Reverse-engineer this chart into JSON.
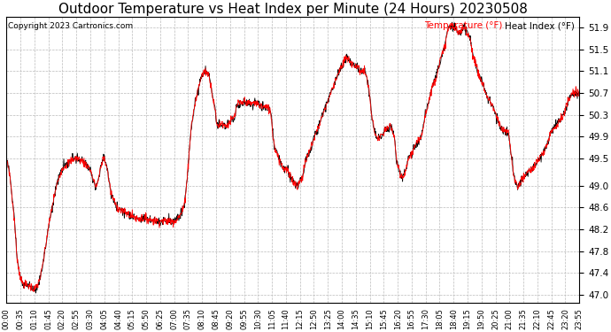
{
  "title": "Outdoor Temperature vs Heat Index per Minute (24 Hours) 20230508",
  "copyright_text": "Copyright 2023 Cartronics.com",
  "legend_heat_index": "Heat Index (°F)",
  "legend_temperature": "Temperature (°F)",
  "ylim": [
    46.85,
    52.1
  ],
  "yticks": [
    47.0,
    47.4,
    47.8,
    48.2,
    48.6,
    49.0,
    49.5,
    49.9,
    50.3,
    50.7,
    51.1,
    51.5,
    51.9
  ],
  "background_color": "#ffffff",
  "grid_color": "#bbbbbb",
  "title_fontsize": 11,
  "heat_index_color": "#ff0000",
  "temperature_color": "#000000",
  "xtick_labels": [
    "00:00",
    "00:35",
    "01:10",
    "01:45",
    "02:20",
    "02:55",
    "03:30",
    "04:05",
    "04:40",
    "05:15",
    "05:50",
    "06:25",
    "07:00",
    "07:35",
    "08:10",
    "08:45",
    "09:20",
    "09:55",
    "10:30",
    "11:05",
    "11:40",
    "12:15",
    "12:50",
    "13:25",
    "14:00",
    "14:35",
    "15:10",
    "15:45",
    "16:20",
    "16:55",
    "17:30",
    "18:05",
    "18:40",
    "19:15",
    "19:50",
    "20:25",
    "21:00",
    "21:35",
    "22:10",
    "22:45",
    "23:20",
    "23:55"
  ]
}
